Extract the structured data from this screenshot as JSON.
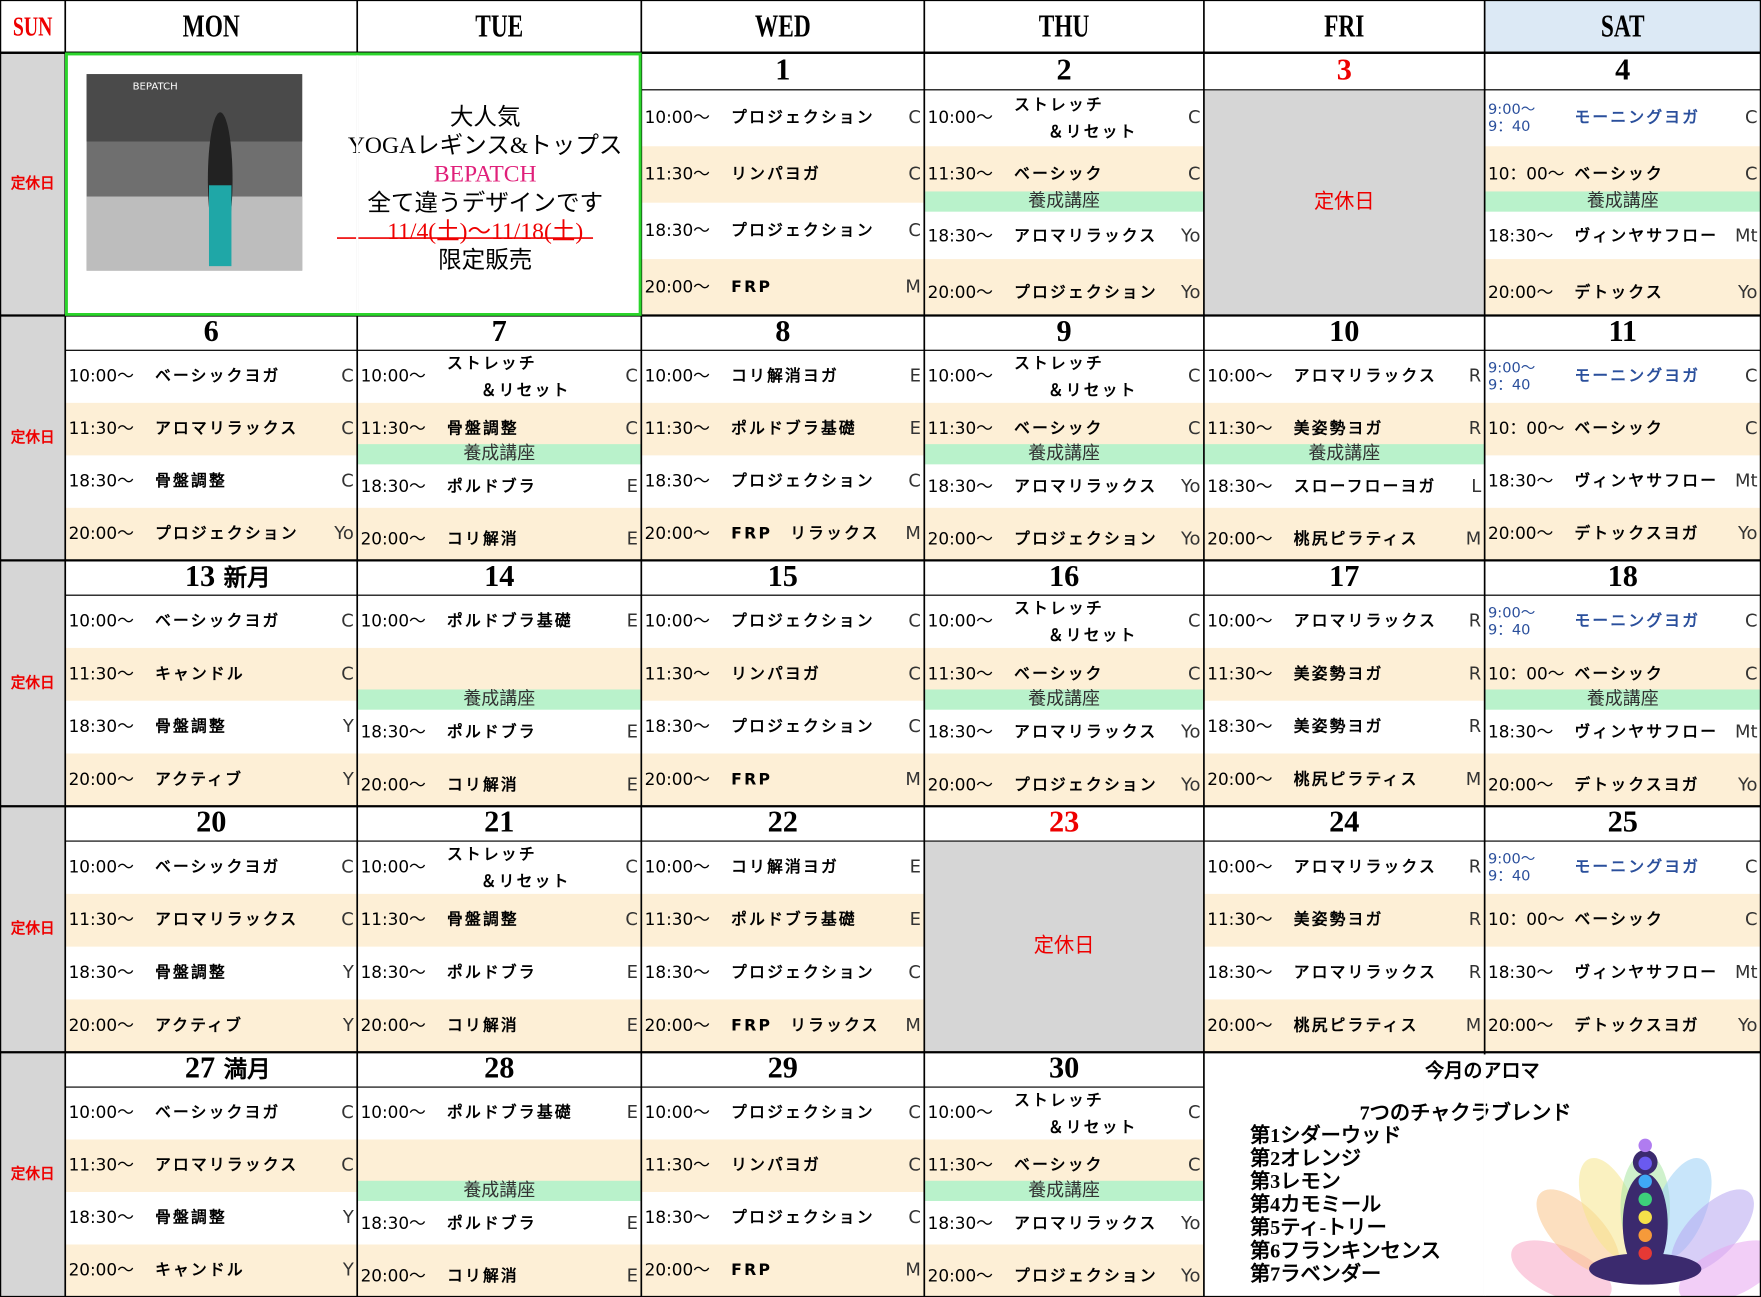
{
  "header": {
    "days": [
      "SUN",
      "MON",
      "TUE",
      "WED",
      "THU",
      "FRI",
      "SAT"
    ]
  },
  "weeks": [
    {
      "sun": "定休日",
      "days": [
        {
          "ad": {
            "logo": "BEPATCH",
            "lines": [
              "大人気",
              "YOGAレギンス&トップス",
              "BEPATCH",
              "全て違うデザインです",
              "11/4(土)～11/18(土)",
              "限定販売"
            ]
          }
        },
        {
          "date": "1",
          "classes": [
            {
              "time": "10:00～",
              "name": "プロジェクション",
              "instructor": "C"
            },
            {
              "time": "11:30～",
              "name": "リンパヨガ",
              "instructor": "C"
            },
            {
              "time": "18:30～",
              "name": "プロジェクション",
              "instructor": "C"
            },
            {
              "time": "20:00～",
              "name": "FRP",
              "instructor": "M"
            }
          ]
        },
        {
          "date": "2",
          "course": "養成講座",
          "classes": [
            {
              "time": "10:00～",
              "name": [
                "ストレッチ",
                "＆リセット"
              ],
              "instructor": "C"
            },
            {
              "time": "11:30～",
              "name": "ベーシック",
              "instructor": "C"
            },
            {
              "time": "18:30～",
              "name": "アロマリラックス",
              "instructor": "Yo"
            },
            {
              "time": "20:00～",
              "name": "プロジェクション",
              "instructor": "Yo"
            }
          ]
        },
        {
          "date": "3",
          "holiday": "定休日"
        },
        {
          "date": "4",
          "course": "養成講座",
          "classes": [
            {
              "time": [
                "9:00～",
                "9：40"
              ],
              "name": "モーニングヨガ",
              "instructor": "C"
            },
            {
              "time": "10：00～",
              "name": "ベーシック",
              "instructor": "C"
            },
            {
              "time": "18:30～",
              "name": "ヴィンヤサフロー",
              "instructor": "Mt"
            },
            {
              "time": "20:00～",
              "name": "デトックス",
              "instructor": "Yo"
            }
          ]
        }
      ]
    },
    {
      "sun": "定休日",
      "days": [
        {
          "date": "6",
          "classes": [
            {
              "time": "10:00～",
              "name": "ベーシックヨガ",
              "instructor": "C"
            },
            {
              "time": "11:30～",
              "name": "アロマリラックス",
              "instructor": "C"
            },
            {
              "time": "18:30～",
              "name": "骨盤調整",
              "instructor": "C"
            },
            {
              "time": "20:00～",
              "name": "プロジェクション",
              "instructor": "Yo"
            }
          ]
        },
        {
          "date": "7",
          "course": "養成講座",
          "classes": [
            {
              "time": "10:00～",
              "name": [
                "ストレッチ",
                "＆リセット"
              ],
              "instructor": "C"
            },
            {
              "time": "11:30～",
              "name": "骨盤調整",
              "instructor": "C"
            },
            {
              "time": "18:30～",
              "name": "ポルドブラ",
              "instructor": "E"
            },
            {
              "time": "20:00～",
              "name": "コリ解消",
              "instructor": "E"
            }
          ]
        },
        {
          "date": "8",
          "classes": [
            {
              "time": "10:00～",
              "name": "コリ解消ヨガ",
              "instructor": "E"
            },
            {
              "time": "11:30～",
              "name": "ポルドブラ基礎",
              "instructor": "E"
            },
            {
              "time": "18:30～",
              "name": "プロジェクション",
              "instructor": "C"
            },
            {
              "time": "20:00～",
              "name": "FRP　リラックス",
              "instructor": "M"
            }
          ]
        },
        {
          "date": "9",
          "course": "養成講座",
          "classes": [
            {
              "time": "10:00～",
              "name": [
                "ストレッチ",
                "＆リセット"
              ],
              "instructor": "C"
            },
            {
              "time": "11:30～",
              "name": "ベーシック",
              "instructor": "C"
            },
            {
              "time": "18:30～",
              "name": "アロマリラックス",
              "instructor": "Yo"
            },
            {
              "time": "20:00～",
              "name": "プロジェクション",
              "instructor": "Yo"
            }
          ]
        },
        {
          "date": "10",
          "course": "養成講座",
          "classes": [
            {
              "time": "10:00～",
              "name": "アロマリラックス",
              "instructor": "R"
            },
            {
              "time": "11:30～",
              "name": "美姿勢ヨガ",
              "instructor": "R"
            },
            {
              "time": "18:30～",
              "name": "スローフローヨガ",
              "instructor": "L"
            },
            {
              "time": "20:00～",
              "name": "桃尻ピラティス",
              "instructor": "M"
            }
          ]
        },
        {
          "date": "11",
          "classes": [
            {
              "time": [
                "9:00～",
                "9：40"
              ],
              "name": "モーニングヨガ",
              "instructor": "C"
            },
            {
              "time": "10：00～",
              "name": "ベーシック",
              "instructor": "C"
            },
            {
              "time": "18:30～",
              "name": "ヴィンヤサフロー",
              "instructor": "Mt"
            },
            {
              "time": "20:00～",
              "name": "デトックスヨガ",
              "instructor": "Yo"
            }
          ]
        }
      ]
    },
    {
      "sun": "定休日",
      "days": [
        {
          "date": "13",
          "note": "新月",
          "classes": [
            {
              "time": "10:00～",
              "name": "ベーシックヨガ",
              "instructor": "C"
            },
            {
              "time": "11:30～",
              "name": "キャンドル",
              "instructor": "C"
            },
            {
              "time": "18:30～",
              "name": "骨盤調整",
              "instructor": "Y"
            },
            {
              "time": "20:00～",
              "name": "アクティブ",
              "instructor": "Y"
            }
          ]
        },
        {
          "date": "14",
          "course": "養成講座",
          "classes": [
            {
              "time": "10:00～",
              "name": "ポルドブラ基礎",
              "instructor": "E"
            },
            null,
            {
              "time": "18:30～",
              "name": "ポルドブラ",
              "instructor": "E"
            },
            {
              "time": "20:00～",
              "name": "コリ解消",
              "instructor": "E"
            }
          ]
        },
        {
          "date": "15",
          "classes": [
            {
              "time": "10:00～",
              "name": "プロジェクション",
              "instructor": "C"
            },
            {
              "time": "11:30～",
              "name": "リンパヨガ",
              "instructor": "C"
            },
            {
              "time": "18:30～",
              "name": "プロジェクション",
              "instructor": "C"
            },
            {
              "time": "20:00～",
              "name": "FRP",
              "instructor": "M"
            }
          ]
        },
        {
          "date": "16",
          "course": "養成講座",
          "classes": [
            {
              "time": "10:00～",
              "name": [
                "ストレッチ",
                "＆リセット"
              ],
              "instructor": "C"
            },
            {
              "time": "11:30～",
              "name": "ベーシック",
              "instructor": "C"
            },
            {
              "time": "18:30～",
              "name": "アロマリラックス",
              "instructor": "Yo"
            },
            {
              "time": "20:00～",
              "name": "プロジェクション",
              "instructor": "Yo"
            }
          ]
        },
        {
          "date": "17",
          "classes": [
            {
              "time": "10:00～",
              "name": "アロマリラックス",
              "instructor": "R"
            },
            {
              "time": "11:30～",
              "name": "美姿勢ヨガ",
              "instructor": "R"
            },
            {
              "time": "18:30～",
              "name": "美姿勢ヨガ",
              "instructor": "R"
            },
            {
              "time": "20:00～",
              "name": "桃尻ピラティス",
              "instructor": "M"
            }
          ]
        },
        {
          "date": "18",
          "course": "養成講座",
          "classes": [
            {
              "time": [
                "9:00～",
                "9：40"
              ],
              "name": "モーニングヨガ",
              "instructor": "C"
            },
            {
              "time": "10：00～",
              "name": "ベーシック",
              "instructor": "C"
            },
            {
              "time": "18:30～",
              "name": "ヴィンヤサフロー",
              "instructor": "Mt"
            },
            {
              "time": "20:00～",
              "name": "デトックスヨガ",
              "instructor": "Yo"
            }
          ]
        }
      ]
    },
    {
      "sun": "定休日",
      "days": [
        {
          "date": "20",
          "classes": [
            {
              "time": "10:00～",
              "name": "ベーシックヨガ",
              "instructor": "C"
            },
            {
              "time": "11:30～",
              "name": "アロマリラックス",
              "instructor": "C"
            },
            {
              "time": "18:30～",
              "name": "骨盤調整",
              "instructor": "Y"
            },
            {
              "time": "20:00～",
              "name": "アクティブ",
              "instructor": "Y"
            }
          ]
        },
        {
          "date": "21",
          "classes": [
            {
              "time": "10:00～",
              "name": [
                "ストレッチ",
                "＆リセット"
              ],
              "instructor": "C"
            },
            {
              "time": "11:30～",
              "name": "骨盤調整",
              "instructor": "C"
            },
            {
              "time": "18:30～",
              "name": "ポルドブラ",
              "instructor": "E"
            },
            {
              "time": "20:00～",
              "name": "コリ解消",
              "instructor": "E"
            }
          ]
        },
        {
          "date": "22",
          "classes": [
            {
              "time": "10:00～",
              "name": "コリ解消ヨガ",
              "instructor": "E"
            },
            {
              "time": "11:30～",
              "name": "ポルドブラ基礎",
              "instructor": "E"
            },
            {
              "time": "18:30～",
              "name": "プロジェクション",
              "instructor": "C"
            },
            {
              "time": "20:00～",
              "name": "FRP　リラックス",
              "instructor": "M"
            }
          ]
        },
        {
          "date": "23",
          "holiday": "定休日"
        },
        {
          "date": "24",
          "classes": [
            {
              "time": "10:00～",
              "name": "アロマリラックス",
              "instructor": "R"
            },
            {
              "time": "11:30～",
              "name": "美姿勢ヨガ",
              "instructor": "R"
            },
            {
              "time": "18:30～",
              "name": "アロマリラックス",
              "instructor": "R"
            },
            {
              "time": "20:00～",
              "name": "桃尻ピラティス",
              "instructor": "M"
            }
          ]
        },
        {
          "date": "25",
          "classes": [
            {
              "time": [
                "9:00～",
                "9：40"
              ],
              "name": "モーニングヨガ",
              "instructor": "C"
            },
            {
              "time": "10：00～",
              "name": "ベーシック",
              "instructor": "C"
            },
            {
              "time": "18:30～",
              "name": "ヴィンヤサフロー",
              "instructor": "Mt"
            },
            {
              "time": "20:00～",
              "name": "デトックスヨガ",
              "instructor": "Yo"
            }
          ]
        }
      ]
    },
    {
      "sun": "定休日",
      "days": [
        {
          "date": "27",
          "note": "満月",
          "classes": [
            {
              "time": "10:00～",
              "name": "ベーシックヨガ",
              "instructor": "C"
            },
            {
              "time": "11:30～",
              "name": "アロマリラックス",
              "instructor": "C"
            },
            {
              "time": "18:30～",
              "name": "骨盤調整",
              "instructor": "Y"
            },
            {
              "time": "20:00～",
              "name": "キャンドル",
              "instructor": "Y"
            }
          ]
        },
        {
          "date": "28",
          "course": "養成講座",
          "classes": [
            {
              "time": "10:00～",
              "name": "ポルドブラ基礎",
              "instructor": "E"
            },
            null,
            {
              "time": "18:30～",
              "name": "ポルドブラ",
              "instructor": "E"
            },
            {
              "time": "20:00～",
              "name": "コリ解消",
              "instructor": "E"
            }
          ]
        },
        {
          "date": "29",
          "classes": [
            {
              "time": "10:00～",
              "name": "プロジェクション",
              "instructor": "C"
            },
            {
              "time": "11:30～",
              "name": "リンパヨガ",
              "instructor": "C"
            },
            {
              "time": "18:30～",
              "name": "プロジェクション",
              "instructor": "C"
            },
            {
              "time": "20:00～",
              "name": "FRP",
              "instructor": "M"
            }
          ]
        },
        {
          "date": "30",
          "course": "養成講座",
          "classes": [
            {
              "time": "10:00～",
              "name": [
                "ストレッチ",
                "＆リセット"
              ],
              "instructor": "C"
            },
            {
              "time": "11:30～",
              "name": "ベーシック",
              "instructor": "C"
            },
            {
              "time": "18:30～",
              "name": "アロマリラックス",
              "instructor": "Yo"
            },
            {
              "time": "20:00～",
              "name": "プロジェクション",
              "instructor": "Yo"
            }
          ]
        },
        {
          "aroma": {
            "title": "今月のアロマ",
            "subtitle": "7つのチャクラブレンド",
            "items": [
              "第1シダーウッド",
              "第2オレンジ",
              "第3レモン",
              "第4カモミール",
              "第5ティ-トリー",
              "第6フランキンセンス",
              "第7ラベンダー"
            ]
          }
        }
      ]
    }
  ]
}
